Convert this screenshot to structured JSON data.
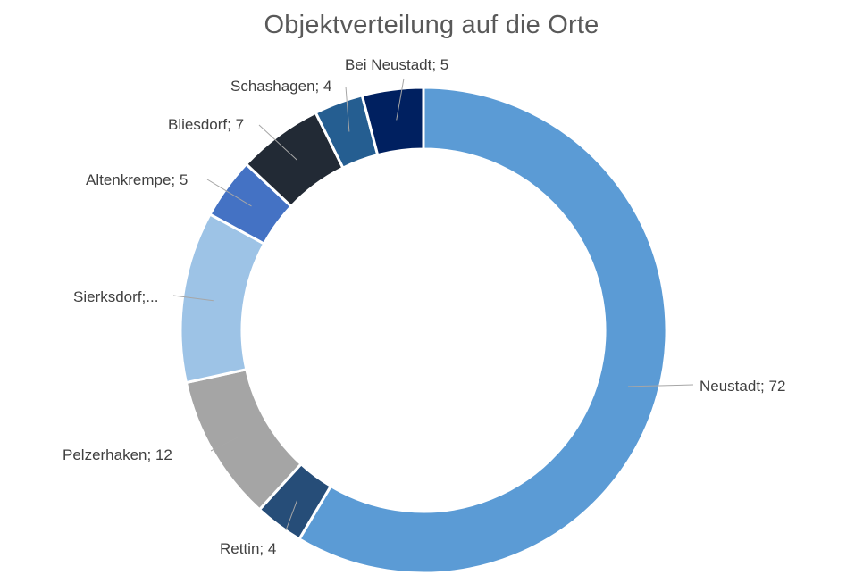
{
  "chart_data": {
    "type": "pie",
    "variant": "doughnut",
    "title": "Objektverteilung auf die Orte",
    "legend": "none",
    "slices": [
      {
        "label": "Neustadt; 72",
        "category": "Neustadt",
        "value": 72,
        "color": "#5b9bd5"
      },
      {
        "label": "Rettin; 4",
        "category": "Rettin",
        "value": 4,
        "color": "#264d78"
      },
      {
        "label": "Pelzerhaken; 12",
        "category": "Pelzerhaken",
        "value": 12,
        "color": "#a5a5a5"
      },
      {
        "label": "Sierksdorf;...",
        "category": "Sierksdorf",
        "value": 14,
        "color": "#9dc3e6"
      },
      {
        "label": "Altenkrempe; 5",
        "category": "Altenkrempe",
        "value": 5,
        "color": "#4472c4"
      },
      {
        "label": "Bliesdorf; 7",
        "category": "Bliesdorf",
        "value": 7,
        "color": "#222a35"
      },
      {
        "label": "Schashagen; 4",
        "category": "Schashagen",
        "value": 4,
        "color": "#255e91"
      },
      {
        "label": "Bei Neustadt; 5",
        "category": "Bei Neustadt",
        "value": 5,
        "color": "#002060"
      }
    ]
  }
}
